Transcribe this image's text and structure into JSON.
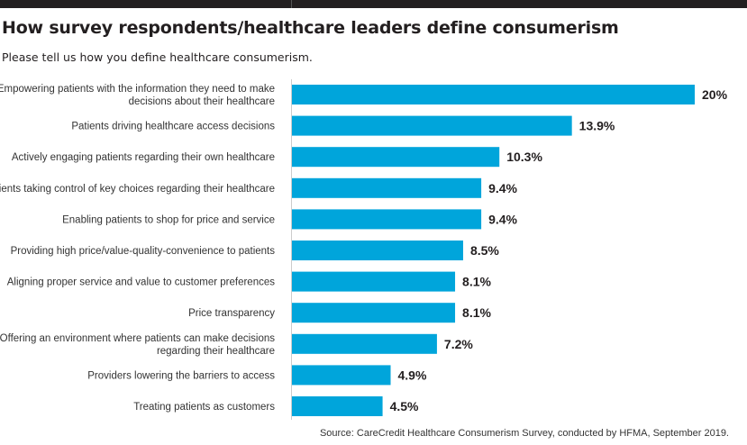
{
  "title": "How survey respondents/healthcare leaders define consumerism",
  "subtitle": "Please tell us how you define healthcare consumerism.",
  "source": "Source: CareCredit Healthcare Consumerism Survey, conducted by HFMA, September 2019.",
  "chart_data": {
    "type": "bar",
    "orientation": "horizontal",
    "title": "How survey respondents/healthcare leaders define consumerism",
    "subtitle": "Please tell us how you define healthcare consumerism.",
    "categories": [
      [
        "Empowering patients with the information they need to make",
        "decisions about their healthcare"
      ],
      [
        "Patients driving healthcare access decisions"
      ],
      [
        "Actively engaging patients regarding their own healthcare"
      ],
      [
        "Patients taking control of key choices regarding their healthcare"
      ],
      [
        "Enabling patients to shop for price and service"
      ],
      [
        "Providing high price/value-quality-convenience to patients"
      ],
      [
        "Aligning proper service and value to customer preferences"
      ],
      [
        "Price transparency"
      ],
      [
        "Offering an environment where patients can make decisions",
        "regarding their healthcare"
      ],
      [
        "Providers lowering the barriers to access"
      ],
      [
        "Treating patients as customers"
      ]
    ],
    "values": [
      20,
      13.9,
      10.3,
      9.4,
      9.4,
      8.5,
      8.1,
      8.1,
      7.2,
      4.9,
      4.5
    ],
    "data_labels": [
      "20%",
      "13.9%",
      "10.3%",
      "9.4%",
      "9.4%",
      "8.5%",
      "8.1%",
      "8.1%",
      "7.2%",
      "4.9%",
      "4.5%"
    ],
    "xlim": [
      0,
      20
    ],
    "grid": false,
    "bar_color": "#00a5db"
  }
}
